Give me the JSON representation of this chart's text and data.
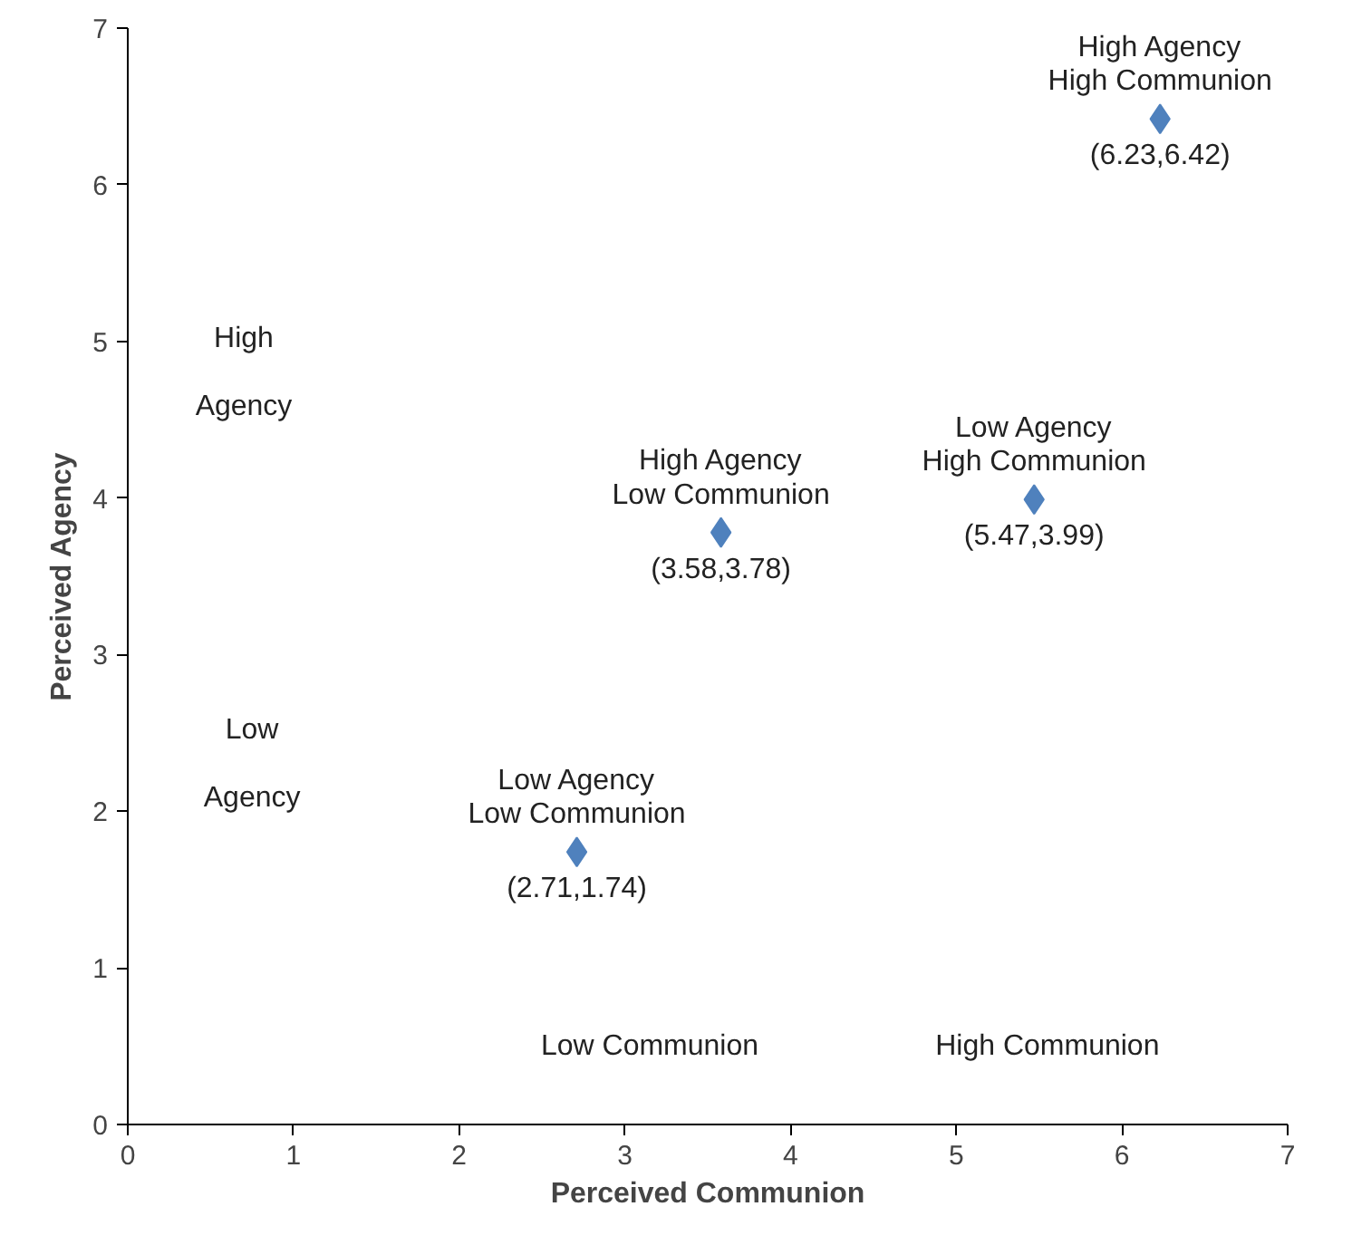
{
  "chart_data": {
    "type": "scatter",
    "xlabel": "Perceived Communion",
    "ylabel": "Perceived Agency",
    "x": [
      6.23,
      3.58,
      5.47,
      2.71
    ],
    "values": [
      6.42,
      3.78,
      3.99,
      1.74
    ],
    "value_labels": [
      "(6.23,6.42)",
      "(3.58,3.78)",
      "(5.47,3.99)",
      "(2.71,1.74)"
    ],
    "color": "#4f81bd",
    "marker": "diamond",
    "xlim": [
      0,
      7
    ],
    "ylim": [
      0,
      7
    ],
    "xticks": [
      0,
      1,
      2,
      3,
      4,
      5,
      6,
      7
    ],
    "yticks": [
      0,
      1,
      2,
      3,
      4,
      5,
      6,
      7
    ],
    "grid": false,
    "annotations": [
      {
        "text": "High Agency\nHigh Communion",
        "x": 6.23,
        "y": 6.42
      },
      {
        "text": "High Agency\nLow Communion",
        "x": 3.58,
        "y": 3.78
      },
      {
        "text": "Low Agency\nHigh Communion",
        "x": 5.47,
        "y": 3.99
      },
      {
        "text": "Low Agency\nLow Communion",
        "x": 2.71,
        "y": 1.74
      },
      "High Agency",
      "Low Agency",
      "Low Communion",
      "High Communion"
    ]
  }
}
